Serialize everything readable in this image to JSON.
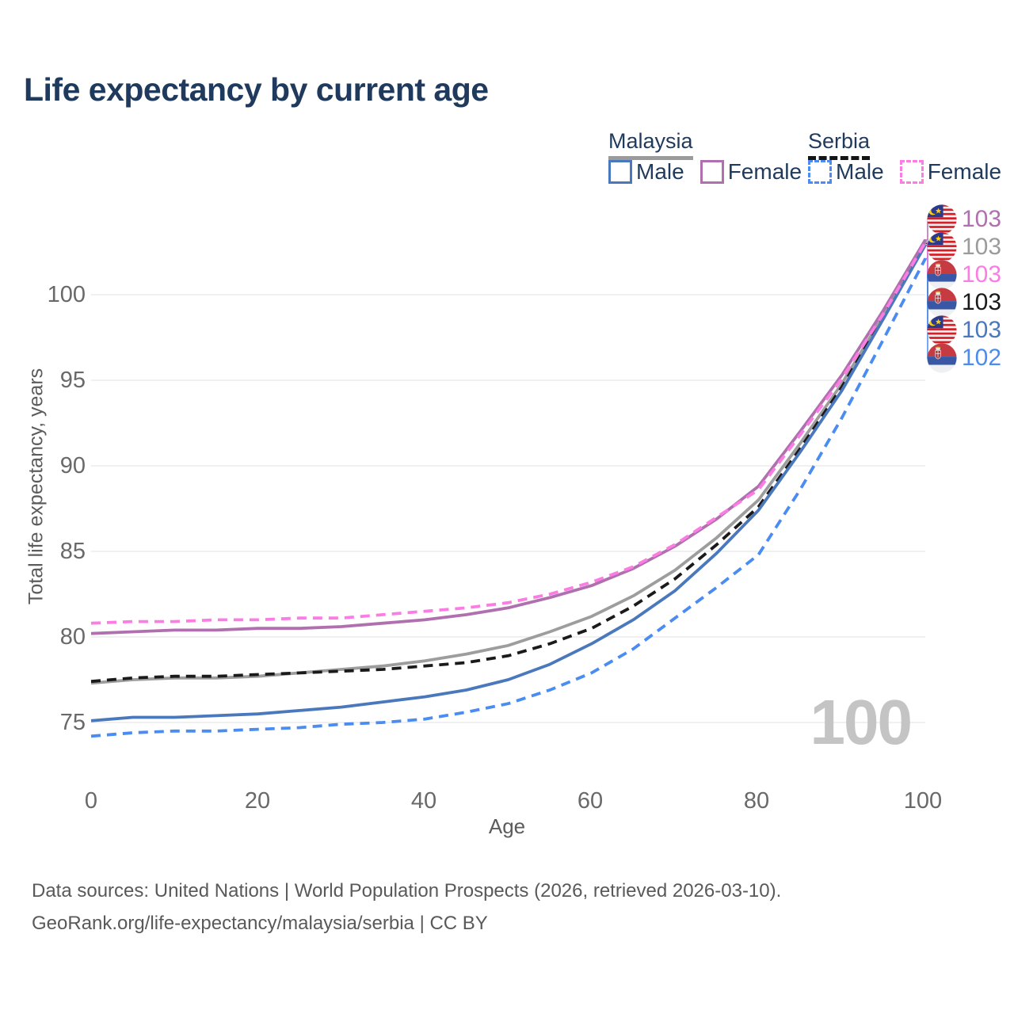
{
  "title": "Life expectancy by current age",
  "legend": {
    "groups": [
      {
        "label": "Malaysia",
        "line_style": "solid",
        "underline_color": "#9b9b9b",
        "items": [
          {
            "label": "Male",
            "color": "#4a78bd"
          },
          {
            "label": "Female",
            "color": "#b06fae"
          }
        ]
      },
      {
        "label": "Serbia",
        "line_style": "dashed",
        "underline_color": "#141414",
        "items": [
          {
            "label": "Male",
            "color": "#4a8cf2"
          },
          {
            "label": "Female",
            "color": "#fb7ce2"
          }
        ]
      }
    ]
  },
  "y_axis": {
    "label": "Total life expectancy, years",
    "ticks": [
      "75",
      "80",
      "85",
      "90",
      "95",
      "100"
    ]
  },
  "x_axis": {
    "label": "Age",
    "ticks": [
      "0",
      "20",
      "40",
      "60",
      "80",
      "100"
    ]
  },
  "watermark": "100",
  "end_labels": [
    {
      "flag": "malaysia",
      "value": "103",
      "color": "#b06fae"
    },
    {
      "flag": "malaysia",
      "value": "103",
      "color": "#9b9b9b"
    },
    {
      "flag": "serbia",
      "value": "103",
      "color": "#fb7ce2"
    },
    {
      "flag": "serbia",
      "value": "103",
      "color": "#1a1a1a"
    },
    {
      "flag": "malaysia",
      "value": "103",
      "color": "#4a78bd"
    },
    {
      "flag": "serbia",
      "value": "102",
      "color": "#4a8cf2"
    }
  ],
  "footer": {
    "line1": "Data sources: United Nations | World Population Prospects (2026, retrieved 2026-03-10).",
    "line2": "GeoRank.org/life-expectancy/malaysia/serbia | CC BY"
  },
  "chart_data": {
    "type": "line",
    "title": "Life expectancy by current age",
    "xlabel": "Age",
    "ylabel": "Total life expectancy, years",
    "xlim": [
      0,
      100
    ],
    "ylim": [
      73.5,
      103.5
    ],
    "grid": "horizontal",
    "legend_position": "top-right",
    "x": [
      0,
      5,
      10,
      15,
      20,
      25,
      30,
      35,
      40,
      45,
      50,
      55,
      60,
      65,
      70,
      75,
      80,
      85,
      90,
      95,
      100
    ],
    "series": [
      {
        "name": "Malaysia Both sexes",
        "country": "Malaysia",
        "sex": "Both",
        "color": "#9d9d9d",
        "dash": false,
        "label_row": 1,
        "values": [
          77.3,
          77.5,
          77.6,
          77.6,
          77.7,
          77.9,
          78.1,
          78.3,
          78.6,
          79.0,
          79.5,
          80.3,
          81.2,
          82.4,
          83.9,
          85.8,
          88.0,
          91.3,
          94.8,
          98.8,
          103.1
        ]
      },
      {
        "name": "Serbia Both sexes",
        "country": "Serbia",
        "sex": "Both",
        "color": "#1a1a1a",
        "dash": true,
        "label_row": 3,
        "values": [
          77.4,
          77.6,
          77.7,
          77.7,
          77.8,
          77.9,
          78.0,
          78.1,
          78.3,
          78.5,
          78.9,
          79.6,
          80.5,
          81.8,
          83.4,
          85.4,
          87.6,
          91.0,
          94.6,
          98.7,
          103.0
        ]
      },
      {
        "name": "Malaysia Male",
        "country": "Malaysia",
        "sex": "Male",
        "color": "#4a78bd",
        "dash": false,
        "label_row": 4,
        "values": [
          75.1,
          75.3,
          75.3,
          75.4,
          75.5,
          75.7,
          75.9,
          76.2,
          76.5,
          76.9,
          77.5,
          78.4,
          79.6,
          81.0,
          82.7,
          84.9,
          87.4,
          90.8,
          94.4,
          98.6,
          102.9
        ]
      },
      {
        "name": "Serbia Male",
        "country": "Serbia",
        "sex": "Male",
        "color": "#4a8cf2",
        "dash": true,
        "label_row": 5,
        "values": [
          74.2,
          74.4,
          74.5,
          74.5,
          74.6,
          74.7,
          74.9,
          75.0,
          75.2,
          75.6,
          76.1,
          76.9,
          77.9,
          79.3,
          81.1,
          82.9,
          84.8,
          88.6,
          92.8,
          97.4,
          102.1
        ]
      },
      {
        "name": "Malaysia Female",
        "country": "Malaysia",
        "sex": "Female",
        "color": "#b06fae",
        "dash": false,
        "label_row": 0,
        "values": [
          80.2,
          80.3,
          80.4,
          80.4,
          80.5,
          80.5,
          80.6,
          80.8,
          81.0,
          81.3,
          81.7,
          82.3,
          83.0,
          84.0,
          85.3,
          86.9,
          88.8,
          92.0,
          95.3,
          99.1,
          103.2
        ]
      },
      {
        "name": "Serbia Female",
        "country": "Serbia",
        "sex": "Female",
        "color": "#fb7ce2",
        "dash": true,
        "label_row": 2,
        "values": [
          80.8,
          80.9,
          80.9,
          81.0,
          81.0,
          81.1,
          81.1,
          81.3,
          81.5,
          81.7,
          82.0,
          82.5,
          83.2,
          84.1,
          85.4,
          87.0,
          88.6,
          91.8,
          95.1,
          98.9,
          103.05
        ]
      }
    ]
  }
}
